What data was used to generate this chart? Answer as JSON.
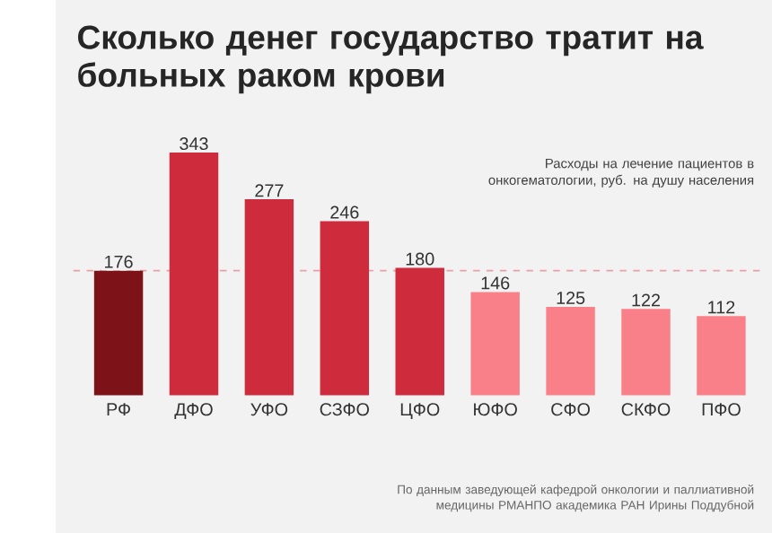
{
  "chart_data": {
    "type": "bar",
    "title": "Сколько денег государство тратит на больных раком крови",
    "categories": [
      "РФ",
      "ДФО",
      "УФО",
      "СЗФО",
      "ЦФО",
      "ЮФО",
      "СФО",
      "СКФО",
      "ПФО"
    ],
    "values": [
      176,
      343,
      277,
      246,
      180,
      146,
      125,
      122,
      112
    ],
    "colors": [
      "#7d1318",
      "#ce2b3c",
      "#ce2b3c",
      "#ce2b3c",
      "#ce2b3c",
      "#f98088",
      "#f98088",
      "#f98088",
      "#f98088"
    ],
    "data_labels": true,
    "ref_lines": [
      {
        "axis": "y",
        "value": 176,
        "color": "#e8a0a8",
        "line_style": "dashed"
      }
    ],
    "annotations": [
      "Расходы на лечение пациентов в онкогематологии, руб. на душу населения",
      "По данным заведующей кафедрой онкологии и паллиативной медицины РМАНПО академика РАН Ирины Поддубной"
    ]
  }
}
